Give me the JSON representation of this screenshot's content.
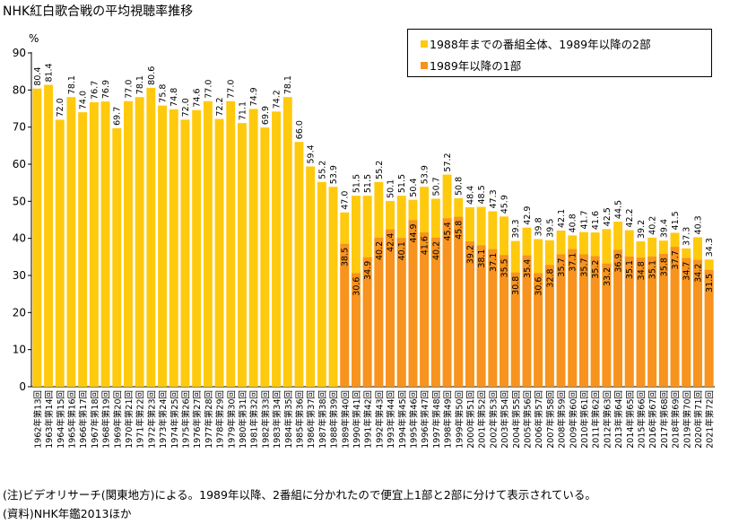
{
  "title": "NHK紅白歌合戦の平均視聴率推移",
  "notes": [
    "(注)ビデオリサーチ(関東地方)による。1989年以降、2番組に分かれたので便宜上1部と2部に分けて表示されている。",
    "(資料)NHK年鑑2013ほか"
  ],
  "colors": {
    "series_part2": "#FFC90E",
    "series_part1": "#F7931E",
    "label_dark": "#000000",
    "label_light": "#FFFFFF"
  },
  "chart_data": {
    "type": "bar",
    "ylabel": "%",
    "ylim": [
      0,
      90
    ],
    "yticks": [
      0,
      10,
      20,
      30,
      40,
      50,
      60,
      70,
      80,
      90
    ],
    "grid": false,
    "legend": "top-right",
    "categories": [
      "1962年第13回",
      "1963年第14回",
      "1964年第15回",
      "1965年第16回",
      "1966年第17回",
      "1967年第18回",
      "1968年第19回",
      "1969年第20回",
      "1970年第21回",
      "1971年第22回",
      "1972年第23回",
      "1973年第24回",
      "1974年第25回",
      "1975年第26回",
      "1976年第27回",
      "1977年第28回",
      "1978年第29回",
      "1979年第30回",
      "1980年第31回",
      "1981年第32回",
      "1982年第33回",
      "1983年第34回",
      "1984年第35回",
      "1985年第36回",
      "1986年第37回",
      "1987年第38回",
      "1988年第39回",
      "1989年第40回",
      "1990年第41回",
      "1991年第42回",
      "1992年第43回",
      "1993年第44回",
      "1994年第45回",
      "1995年第46回",
      "1996年第47回",
      "1997年第48回",
      "1998年第49回",
      "1999年第50回",
      "2000年第51回",
      "2001年第52回",
      "2002年第53回",
      "2003年第54回",
      "2004年第55回",
      "2005年第56回",
      "2006年第57回",
      "2007年第58回",
      "2008年第59回",
      "2009年第60回",
      "2010年第61回",
      "2011年第62回",
      "2012年第63回",
      "2013年第64回",
      "2014年第65回",
      "2015年第66回",
      "2016年第67回",
      "2017年第68回",
      "2018年第69回",
      "2019年第70回",
      "2020年第71回",
      "2021年第72回"
    ],
    "series": [
      {
        "name": "1988年までの番組全体、1989年以降の2部",
        "values": [
          80.4,
          81.4,
          72.0,
          78.1,
          74.0,
          76.7,
          76.9,
          69.7,
          77.0,
          78.1,
          80.6,
          75.8,
          74.8,
          72.0,
          74.6,
          77.0,
          72.2,
          77.0,
          71.1,
          74.9,
          69.9,
          74.2,
          78.1,
          66.0,
          59.4,
          55.2,
          53.9,
          47.0,
          51.5,
          51.5,
          55.2,
          50.1,
          51.5,
          50.4,
          53.9,
          50.7,
          57.2,
          50.8,
          48.4,
          48.5,
          47.3,
          45.9,
          39.3,
          42.9,
          39.8,
          39.5,
          42.1,
          40.8,
          41.7,
          41.6,
          42.5,
          44.5,
          42.2,
          39.2,
          40.2,
          39.4,
          41.5,
          37.3,
          40.3,
          34.3
        ]
      },
      {
        "name": "1989年以降の1部",
        "values": [
          null,
          null,
          null,
          null,
          null,
          null,
          null,
          null,
          null,
          null,
          null,
          null,
          null,
          null,
          null,
          null,
          null,
          null,
          null,
          null,
          null,
          null,
          null,
          null,
          null,
          null,
          null,
          38.5,
          30.6,
          34.9,
          40.2,
          42.4,
          40.1,
          44.9,
          41.6,
          40.2,
          45.4,
          45.8,
          39.2,
          38.1,
          37.1,
          35.5,
          30.8,
          35.4,
          30.6,
          32.8,
          35.7,
          37.1,
          35.7,
          35.2,
          33.2,
          36.9,
          35.1,
          34.8,
          35.1,
          35.8,
          37.7,
          34.7,
          34.2,
          31.5
        ]
      }
    ]
  }
}
